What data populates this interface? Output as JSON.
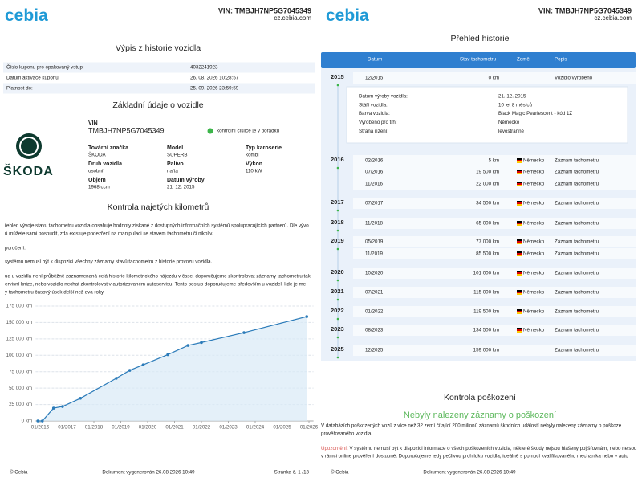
{
  "left_page": {
    "logo": "cebia",
    "vin_header": "VIN: TMBJH7NP5G7045349",
    "site": "cz.cebia.com",
    "title": "Výpis z historie vozidla",
    "info_rows": [
      {
        "label": "Číslo kuponu pro opakovaný vstup:",
        "value": "4032241923"
      },
      {
        "label": "Datum aktivace kuponu:",
        "value": "26. 08. 2026 10:28:57"
      },
      {
        "label": "Platnost do:",
        "value": "25. 09. 2026 23:59:59"
      }
    ],
    "basic_title": "Základní údaje o vozidle",
    "brand_logo": "ŠKODA",
    "vin_label": "VIN",
    "vin": "TMBJH7NP5G7045349",
    "vin_check": "kontrolní číslice je v pořádku",
    "fields": [
      {
        "label": "Tovární značka",
        "value": "ŠKODA"
      },
      {
        "label": "Model",
        "value": "SUPERB"
      },
      {
        "label": "Typ karoserie",
        "value": "kombi"
      },
      {
        "label": "Druh vozidla",
        "value": "osobní"
      },
      {
        "label": "Palivo",
        "value": "nafta"
      },
      {
        "label": "Výkon",
        "value": "110 kW"
      },
      {
        "label": "Objem",
        "value": "1968 ccm"
      },
      {
        "label": "Datum výroby",
        "value": "21. 12. 2015"
      }
    ],
    "mileage_title": "Kontrola najetých kilometrů",
    "paragraph_lines": [
      "řehled vývoje stavu tachometru vozidla obsahuje hodnoty získané z dostupných informačních systémů spolupracujících partnerů. Dle vývo",
      "ů můžete sami posoudit, zda existuje podezření na manipulaci se stavem tachometru či nikoliv.",
      "poručení:",
      "systému nemusí být k dispozici všechny záznamy stavů tachometru z historie provozu vozidla.",
      "ud u vozidla není průběžně zaznamenaná celá historie kilometrického nájezdu v čase, doporučujeme zkontrolovat záznamy tachometru tak",
      "ervisní knize, nebo vozidlo nechat zkontrolovat v autorizovaném autoservisu. Tento postup doporučujeme především u vozidel, kde je me",
      "y tachometru časový úsek delší než dva roky."
    ],
    "footer": {
      "left": "© Cebia",
      "center": "Dokument vygenerován 26.08.2026 10:49",
      "right": "Stránka č.  1 /13"
    }
  },
  "chart_data": {
    "type": "line",
    "x": [
      "12/2015",
      "02/2016",
      "07/2016",
      "11/2016",
      "07/2017",
      "11/2018",
      "05/2019",
      "11/2019",
      "10/2020",
      "07/2021",
      "01/2022",
      "08/2023",
      "12/2025"
    ],
    "series": [
      {
        "name": "Stav tachometru",
        "color": "#2b7bb9",
        "fill": "#d9eaf6",
        "values": [
          0,
          5,
          19500,
          22000,
          34500,
          65000,
          77000,
          85500,
          101000,
          115000,
          119500,
          134500,
          159000
        ]
      }
    ],
    "xlim": [
      "11/2015",
      "03/2026"
    ],
    "xticks": [
      "01/2016",
      "01/2017",
      "01/2018",
      "01/2019",
      "01/2020",
      "01/2021",
      "01/2022",
      "01/2023",
      "01/2024",
      "01/2025",
      "01/2026"
    ],
    "ylim": [
      0,
      175000
    ],
    "yticks": [
      {
        "value": 0,
        "label": "0 km"
      },
      {
        "value": 25000,
        "label": "25 000 km"
      },
      {
        "value": 50000,
        "label": "50 000 km"
      },
      {
        "value": 75000,
        "label": "75 000 km"
      },
      {
        "value": 100000,
        "label": "100 000 km"
      },
      {
        "value": 125000,
        "label": "125 000 km"
      },
      {
        "value": 150000,
        "label": "150 000 km"
      },
      {
        "value": 175000,
        "label": "175 000 km"
      }
    ],
    "grid": true
  },
  "right_page": {
    "logo": "cebia",
    "vin_header": "VIN: TMBJH7NP5G7045349",
    "site": "cz.cebia.com",
    "title": "Přehled historie",
    "columns": [
      "Datum",
      "Stav tachometru",
      "Země",
      "Popis"
    ],
    "history": [
      {
        "year": "2015",
        "entries": [
          {
            "date": "12/2015",
            "km": "0 km",
            "desc": "Vozidlo vyrobeno"
          }
        ]
      },
      {
        "year": "2016",
        "entries": [
          {
            "date": "02/2016",
            "km": "5 km",
            "country": "Německo",
            "desc": "Záznam tachometru"
          },
          {
            "date": "07/2016",
            "km": "19 500 km",
            "country": "Německo",
            "desc": "Záznam tachometru"
          },
          {
            "date": "11/2016",
            "km": "22 000 km",
            "country": "Německo",
            "desc": "Záznam tachometru"
          }
        ]
      },
      {
        "year": "2017",
        "entries": [
          {
            "date": "07/2017",
            "km": "34 500 km",
            "country": "Německo",
            "desc": "Záznam tachometru"
          }
        ]
      },
      {
        "year": "2018",
        "entries": [
          {
            "date": "11/2018",
            "km": "65 000 km",
            "country": "Německo",
            "desc": "Záznam tachometru"
          }
        ]
      },
      {
        "year": "2019",
        "entries": [
          {
            "date": "05/2019",
            "km": "77 000 km",
            "country": "Německo",
            "desc": "Záznam tachometru"
          },
          {
            "date": "11/2019",
            "km": "85 500 km",
            "country": "Německo",
            "desc": "Záznam tachometru"
          }
        ]
      },
      {
        "year": "2020",
        "entries": [
          {
            "date": "10/2020",
            "km": "101 000 km",
            "country": "Německo",
            "desc": "Záznam tachometru"
          }
        ]
      },
      {
        "year": "2021",
        "entries": [
          {
            "date": "07/2021",
            "km": "115 000 km",
            "country": "Německo",
            "desc": "Záznam tachometru"
          }
        ]
      },
      {
        "year": "2022",
        "entries": [
          {
            "date": "01/2022",
            "km": "119 500 km",
            "country": "Německo",
            "desc": "Záznam tachometru"
          }
        ]
      },
      {
        "year": "2023",
        "entries": [
          {
            "date": "08/2023",
            "km": "134 500 km",
            "country": "Německo",
            "desc": "Záznam tachometru"
          }
        ]
      },
      {
        "year": "2025",
        "entries": [
          {
            "date": "12/2025",
            "km": "159 000 km",
            "desc": "Záznam tachometru"
          }
        ]
      }
    ],
    "details": [
      {
        "label": "Datum výroby vozidla:",
        "value": "21. 12. 2015"
      },
      {
        "label": "Stáří vozidla:",
        "value": "10 let 8 měsíců"
      },
      {
        "label": "Barva vozidla:",
        "value": "Black Magic Pearlescent - kód 1Z"
      },
      {
        "label": "Vyrobeno pro trh:",
        "value": "Německo"
      },
      {
        "label": "Strana řízení:",
        "value": "levostranné"
      }
    ],
    "damage_title": "Kontrola poškození",
    "damage_result": "Nebyly nalezeny záznamy o poškození",
    "damage_lines": [
      "V databázích poškozených vozů z více než 32 zemí čítající 200 milionů záznamů škodních událostí nebyly nalezeny záznamy o poškoze",
      "prověřovaného vozidla."
    ],
    "warning_label": "Upozornění:",
    "warning_lines": [
      " V systému nemusí být k dispozici informace o všech poškozeních vozidla, některé škody nejsou hlášeny pojišťovnám, nebo nejsou",
      "v rámci online prověření dostupné. Doporučujeme tedy pečlivou prohlídku vozidla, ideálně s pomocí kvalifikovaného mechanika nebo v auto"
    ],
    "footer": {
      "left": "© Cebia",
      "center": "Dokument vygenerován 26.08.2026 10:49"
    }
  }
}
